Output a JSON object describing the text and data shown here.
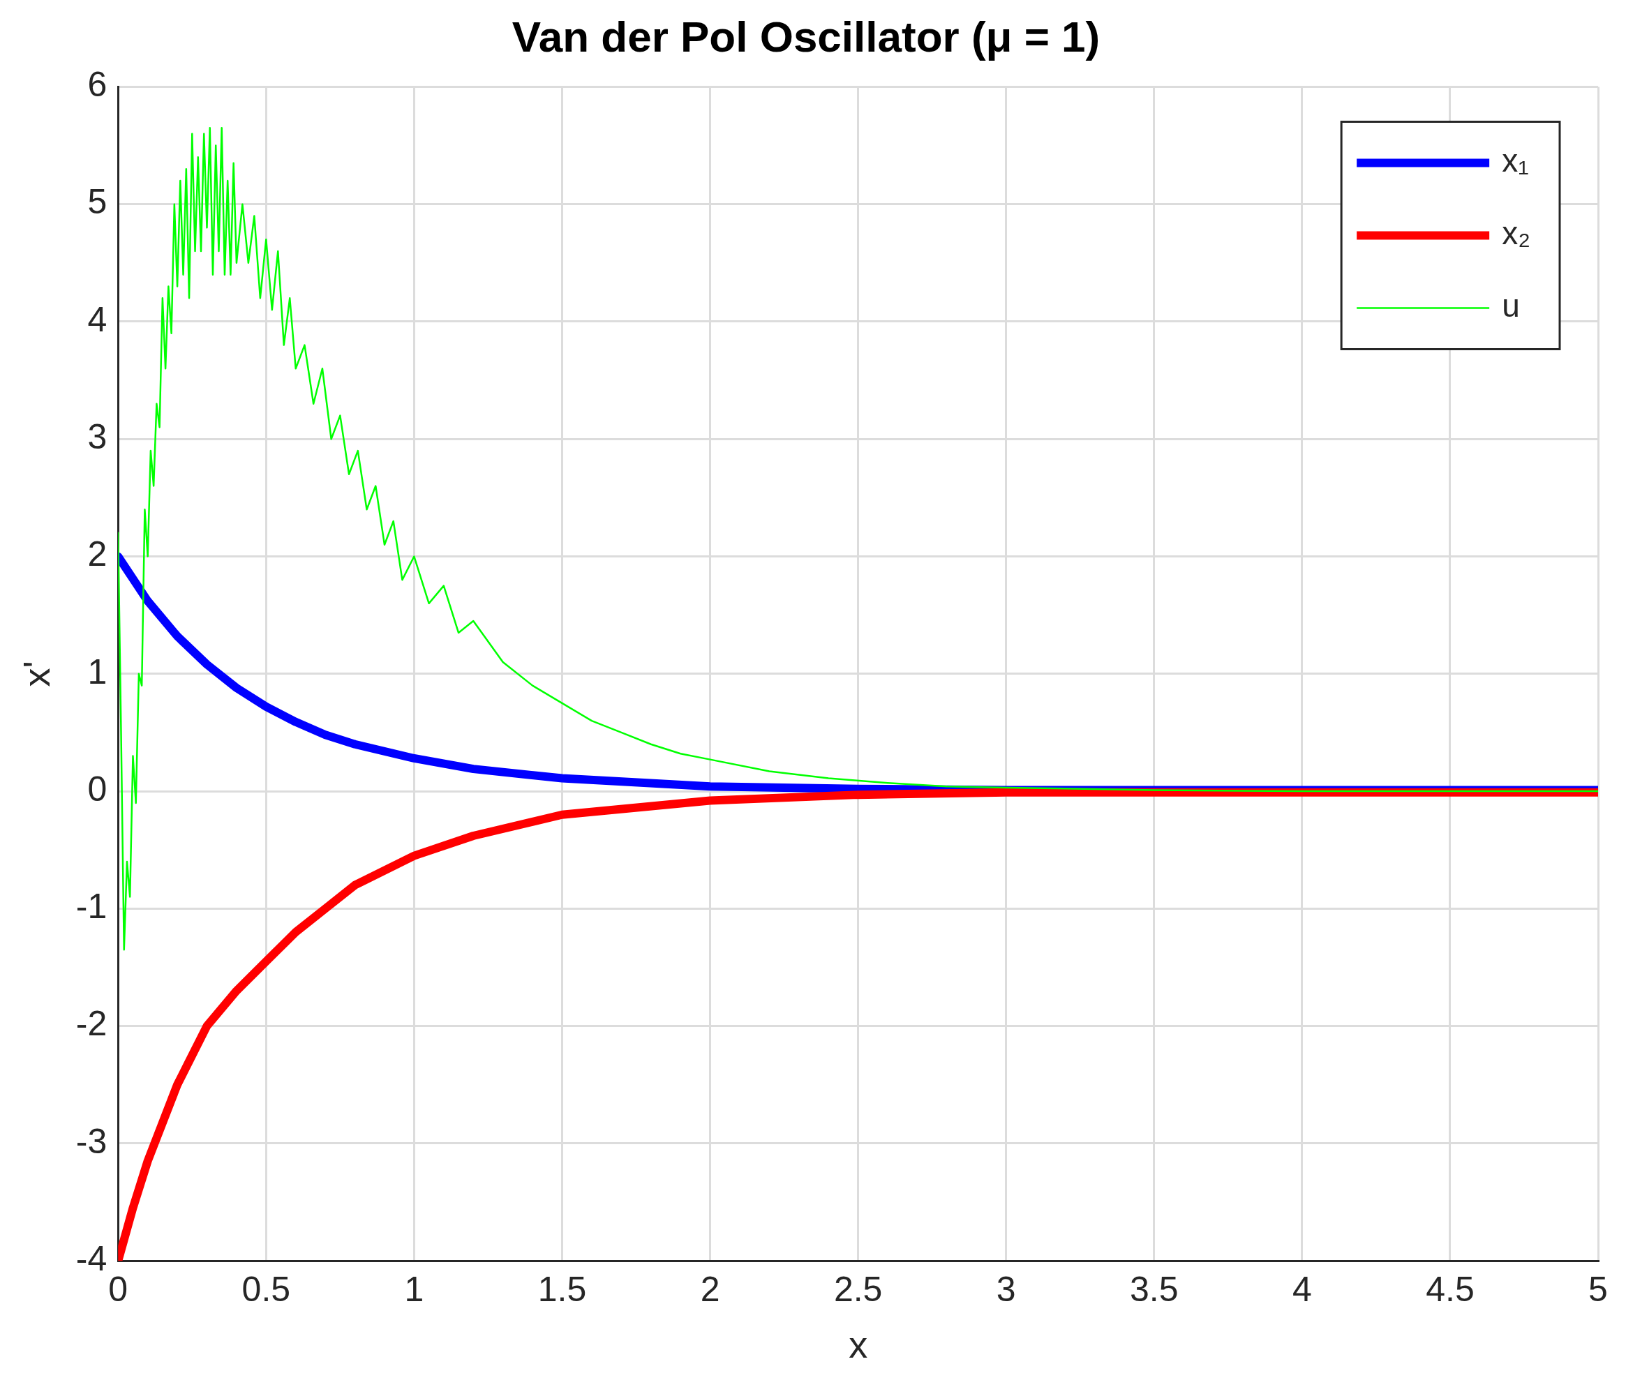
{
  "chart_data": {
    "type": "line",
    "title": "Van der Pol Oscillator (μ = 1)",
    "xlabel": "x",
    "ylabel": "x'",
    "xlim": [
      0,
      5
    ],
    "ylim": [
      -4,
      6
    ],
    "xticks": [
      0,
      0.5,
      1,
      1.5,
      2,
      2.5,
      3,
      3.5,
      4,
      4.5,
      5
    ],
    "yticks": [
      -4,
      -3,
      -2,
      -1,
      0,
      1,
      2,
      3,
      4,
      5,
      6
    ],
    "grid": true,
    "legend": "top right",
    "marker": "none",
    "line_style": "solid",
    "series": [
      {
        "name": "x₁",
        "color": "#0000ff",
        "x": [
          0,
          0.1,
          0.2,
          0.3,
          0.4,
          0.5,
          0.6,
          0.7,
          0.8,
          1,
          1.2,
          1.5,
          2,
          2.5,
          3,
          4,
          5
        ],
        "values": [
          2,
          1.62,
          1.32,
          1.08,
          0.88,
          0.72,
          0.59,
          0.48,
          0.4,
          0.28,
          0.19,
          0.11,
          0.04,
          0.02,
          0.01,
          0.01,
          0.01
        ]
      },
      {
        "name": "x₂",
        "color": "#ff0000",
        "x": [
          0,
          0.05,
          0.1,
          0.2,
          0.3,
          0.4,
          0.5,
          0.6,
          0.7,
          0.8,
          1,
          1.2,
          1.5,
          2,
          2.5,
          3,
          4,
          5
        ],
        "values": [
          -4,
          -3.55,
          -3.15,
          -2.5,
          -2.0,
          -1.7,
          -1.45,
          -1.2,
          -1.0,
          -0.8,
          -0.55,
          -0.38,
          -0.2,
          -0.08,
          -0.03,
          -0.01,
          -0.01,
          -0.01
        ]
      },
      {
        "name": "u",
        "color": "#00ff00",
        "x": [
          0,
          0.01,
          0.02,
          0.03,
          0.04,
          0.05,
          0.06,
          0.07,
          0.08,
          0.09,
          0.1,
          0.11,
          0.12,
          0.13,
          0.14,
          0.15,
          0.16,
          0.17,
          0.18,
          0.19,
          0.2,
          0.21,
          0.22,
          0.23,
          0.24,
          0.25,
          0.26,
          0.27,
          0.28,
          0.29,
          0.3,
          0.31,
          0.32,
          0.33,
          0.34,
          0.35,
          0.36,
          0.37,
          0.38,
          0.39,
          0.4,
          0.42,
          0.44,
          0.46,
          0.48,
          0.5,
          0.52,
          0.54,
          0.56,
          0.58,
          0.6,
          0.63,
          0.66,
          0.69,
          0.72,
          0.75,
          0.78,
          0.81,
          0.84,
          0.87,
          0.9,
          0.93,
          0.96,
          1.0,
          1.05,
          1.1,
          1.15,
          1.2,
          1.3,
          1.4,
          1.5,
          1.6,
          1.7,
          1.8,
          1.9,
          2.0,
          2.2,
          2.4,
          2.6,
          2.8,
          3.0,
          3.5,
          4,
          4.5,
          5
        ],
        "values": [
          2.2,
          0.5,
          -1.35,
          -0.6,
          -0.9,
          0.3,
          -0.1,
          1.0,
          0.9,
          2.4,
          2.0,
          2.9,
          2.6,
          3.3,
          3.1,
          4.2,
          3.6,
          4.3,
          3.9,
          5.0,
          4.3,
          5.2,
          4.4,
          5.3,
          4.2,
          5.6,
          4.6,
          5.4,
          4.6,
          5.6,
          4.8,
          5.65,
          4.4,
          5.5,
          4.6,
          5.65,
          4.4,
          5.2,
          4.4,
          5.35,
          4.5,
          5.0,
          4.5,
          4.9,
          4.2,
          4.7,
          4.1,
          4.6,
          3.8,
          4.2,
          3.6,
          3.8,
          3.3,
          3.6,
          3.0,
          3.2,
          2.7,
          2.9,
          2.4,
          2.6,
          2.1,
          2.3,
          1.8,
          2.0,
          1.6,
          1.75,
          1.35,
          1.45,
          1.1,
          0.9,
          0.75,
          0.6,
          0.5,
          0.4,
          0.32,
          0.27,
          0.17,
          0.11,
          0.07,
          0.04,
          0.03,
          0.01,
          0,
          0,
          0
        ]
      }
    ]
  }
}
